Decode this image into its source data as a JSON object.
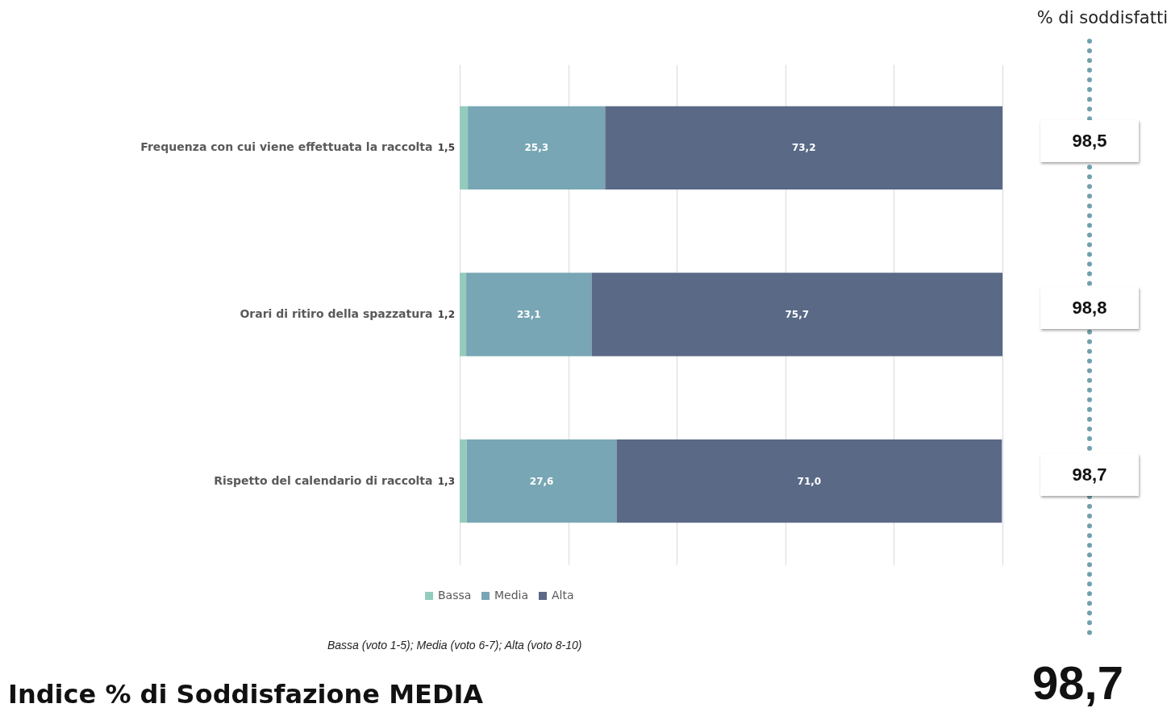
{
  "chart_data": {
    "type": "bar",
    "orientation": "horizontal",
    "stacked": true,
    "categories": [
      "Frequenza con cui viene effettuata la raccolta",
      "Orari di ritiro della spazzatura",
      "Rispetto del calendario di raccolta"
    ],
    "series": [
      {
        "name": "Bassa",
        "color": "#93cbbd",
        "values": [
          1.5,
          1.2,
          1.3
        ],
        "value_labels": [
          "1,5",
          "1,2",
          "1,3"
        ]
      },
      {
        "name": "Media",
        "color": "#78a6b4",
        "values": [
          25.3,
          23.1,
          27.6
        ],
        "value_labels": [
          "25,3",
          "23,1",
          "27,6"
        ]
      },
      {
        "name": "Alta",
        "color": "#596986",
        "values": [
          73.2,
          75.7,
          71.0
        ],
        "value_labels": [
          "73,2",
          "75,7",
          "71,0"
        ]
      }
    ],
    "xlim": [
      0,
      100
    ],
    "xticks": [
      {
        "value": 0,
        "label": null
      },
      {
        "value": 20,
        "label": null
      },
      {
        "value": 40,
        "label": null
      },
      {
        "value": 60,
        "label": null
      },
      {
        "value": 80,
        "label": null
      },
      {
        "value": 100,
        "label": null
      }
    ],
    "tick_labels": "y",
    "grid": "x",
    "legend": "bottom",
    "annotations": [
      "% di soddisfatti",
      "98,5",
      "98,8",
      "98,7",
      "Bassa (voto 1-5); Media (voto 6-7); Alta (voto 8-10)",
      "Indice % di Soddisfazione MEDIA",
      "98,7"
    ]
  }
}
